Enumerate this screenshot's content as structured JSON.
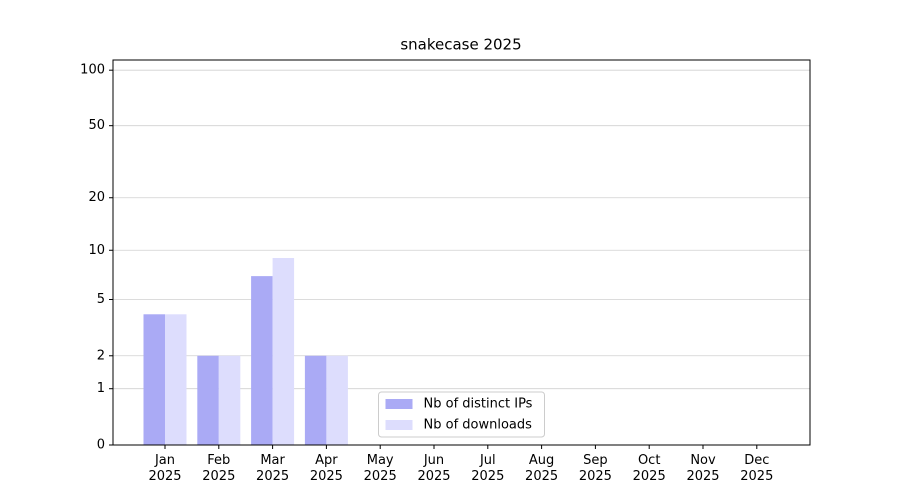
{
  "chart_data": {
    "type": "bar",
    "title": "snakecase 2025",
    "categories": [
      "Jan\n2025",
      "Feb\n2025",
      "Mar\n2025",
      "Apr\n2025",
      "May\n2025",
      "Jun\n2025",
      "Jul\n2025",
      "Aug\n2025",
      "Sep\n2025",
      "Oct\n2025",
      "Nov\n2025",
      "Dec\n2025"
    ],
    "series": [
      {
        "name": "Nb of distinct IPs",
        "color": "#aaaaf5",
        "values": [
          4,
          2,
          7,
          2,
          0,
          0,
          0,
          0,
          0,
          0,
          0,
          0
        ]
      },
      {
        "name": "Nb of downloads",
        "color": "#ddddfd",
        "values": [
          4,
          2,
          9,
          2,
          0,
          0,
          0,
          0,
          0,
          0,
          0,
          0
        ]
      }
    ],
    "yscale": "log1p",
    "ylim": [
      0,
      113.5
    ],
    "yticks": [
      0,
      1,
      2,
      5,
      10,
      20,
      50,
      100
    ],
    "grid": true,
    "legend": "lower center"
  }
}
